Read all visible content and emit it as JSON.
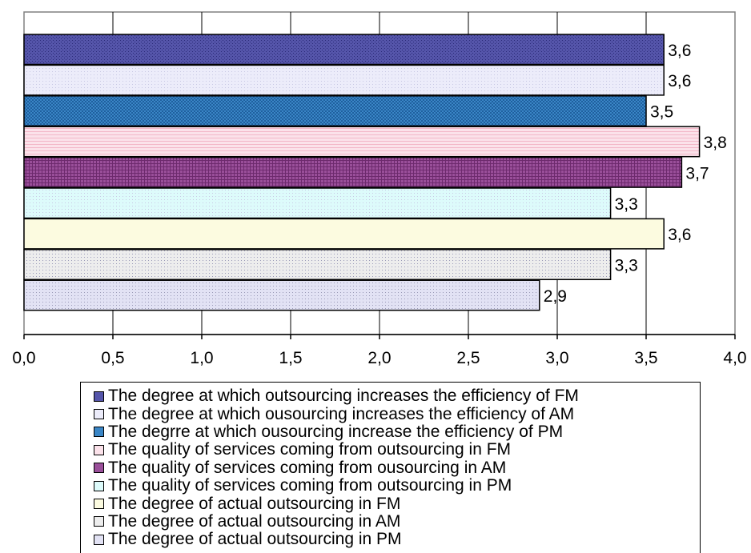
{
  "chart_data": {
    "type": "bar",
    "orientation": "horizontal",
    "xlim": [
      0,
      4
    ],
    "x_ticks": [
      "0,0",
      "0,5",
      "1,0",
      "1,5",
      "2,0",
      "2,5",
      "3,0",
      "3,5",
      "4,0"
    ],
    "grid": true,
    "legend_position": "bottom",
    "series": [
      {
        "name": "The degree at which outsourcing increases the efficiency of FM",
        "value": 3.6,
        "label": "3,6",
        "color": "#5555aa",
        "pattern": "dense-dots"
      },
      {
        "name": "The degree at which ousourcing increases the efficiency of AM",
        "value": 3.6,
        "label": "3,6",
        "color": "#ececfa",
        "pattern": "light"
      },
      {
        "name": "The degrre at which ousourcing increase the efficiency of PM",
        "value": 3.5,
        "label": "3,5",
        "color": "#3a86c6",
        "pattern": "checker"
      },
      {
        "name": "The quality of services coming from outsourcing in FM",
        "value": 3.8,
        "label": "3,8",
        "color": "#fbe2ea",
        "pattern": "h-lines"
      },
      {
        "name": "The quality of services coming from ousourcing in AM",
        "value": 3.7,
        "label": "3,7",
        "color": "#9a4f9a",
        "pattern": "grid"
      },
      {
        "name": "The quality of services coming from outsourcing in PM",
        "value": 3.3,
        "label": "3,3",
        "color": "#ddfbfb",
        "pattern": "light"
      },
      {
        "name": "The degree of actual outsourcing in FM",
        "value": 3.6,
        "label": "3,6",
        "color": "#fcfbe0",
        "pattern": "solid"
      },
      {
        "name": "The degree of actual outsourcing in AM",
        "value": 3.3,
        "label": "3,3",
        "color": "#ededed",
        "pattern": "dots"
      },
      {
        "name": "The degree of actual outsourcing in PM",
        "value": 2.9,
        "label": "2,9",
        "color": "#e2e2f4",
        "pattern": "dots"
      }
    ]
  }
}
